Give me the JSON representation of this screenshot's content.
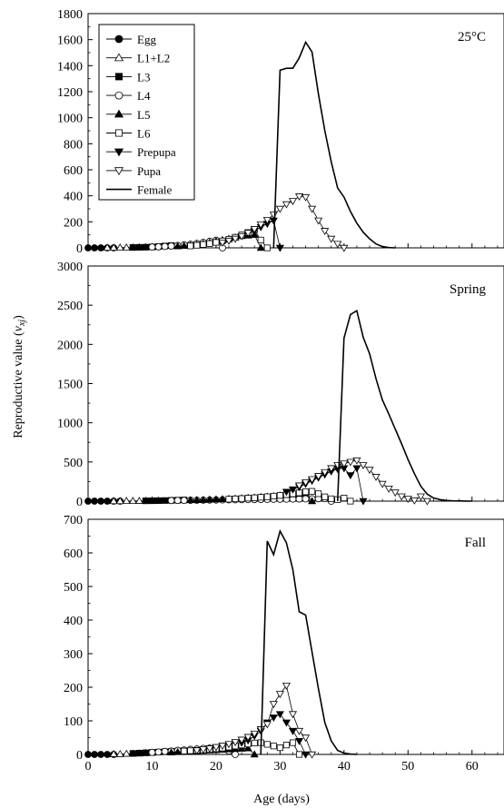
{
  "figure": {
    "ylabel_main": "Reproductive value (",
    "ylabel_var": "v",
    "ylabel_sub": "xj",
    "ylabel_close": ")",
    "xlabel": "Age (days)"
  },
  "legend": [
    {
      "name": "Egg",
      "marker": "circle-filled"
    },
    {
      "name": "L1+L2",
      "marker": "triangle-up-open"
    },
    {
      "name": "L3",
      "marker": "square-filled"
    },
    {
      "name": "L4",
      "marker": "circle-open"
    },
    {
      "name": "L5",
      "marker": "triangle-up-filled"
    },
    {
      "name": "L6",
      "marker": "square-open"
    },
    {
      "name": "Prepupa",
      "marker": "triangle-down-filled"
    },
    {
      "name": "Pupa",
      "marker": "triangle-down-open"
    },
    {
      "name": "Female",
      "marker": "line"
    }
  ],
  "chart_data": [
    {
      "type": "line",
      "panel_label": "25°C",
      "xlim": [
        0,
        65
      ],
      "ylim": [
        0,
        1800
      ],
      "xticks": [
        0,
        10,
        20,
        30,
        40,
        50,
        60
      ],
      "yticks": [
        0,
        200,
        400,
        600,
        800,
        1000,
        1200,
        1400,
        1600,
        1800
      ],
      "series": [
        {
          "name": "Egg",
          "marker": "circle-filled",
          "x": [
            0,
            1,
            2,
            3,
            4
          ],
          "y": [
            0,
            0,
            0,
            0,
            0
          ]
        },
        {
          "name": "L1+L2",
          "marker": "triangle-up-open",
          "x": [
            3,
            4,
            5,
            6,
            7,
            8,
            9,
            10
          ],
          "y": [
            1,
            1,
            2,
            2,
            3,
            4,
            5,
            7
          ]
        },
        {
          "name": "L3",
          "marker": "square-filled",
          "x": [
            7,
            8,
            9,
            10,
            11,
            12,
            13
          ],
          "y": [
            3,
            4,
            5,
            7,
            10,
            14,
            18
          ]
        },
        {
          "name": "L4",
          "marker": "circle-open",
          "x": [
            10,
            11,
            12,
            13,
            14,
            15,
            16,
            17,
            18,
            19,
            20,
            21
          ],
          "y": [
            6,
            8,
            11,
            14,
            18,
            23,
            28,
            34,
            42,
            50,
            58,
            0
          ]
        },
        {
          "name": "L5",
          "marker": "triangle-up-filled",
          "x": [
            14,
            15,
            16,
            17,
            18,
            19,
            20,
            21,
            22,
            23,
            24,
            25,
            26,
            27
          ],
          "y": [
            12,
            15,
            19,
            25,
            32,
            40,
            50,
            60,
            70,
            80,
            90,
            95,
            100,
            0
          ]
        },
        {
          "name": "L6",
          "marker": "square-open",
          "x": [
            16,
            17,
            18,
            19,
            20,
            21,
            22,
            23,
            24,
            25,
            26,
            27,
            28
          ],
          "y": [
            15,
            20,
            26,
            33,
            42,
            53,
            66,
            81,
            99,
            118,
            140,
            60,
            0
          ]
        },
        {
          "name": "Prepupa",
          "marker": "triangle-down-filled",
          "x": [
            26,
            27,
            28,
            29,
            30
          ],
          "y": [
            130,
            160,
            185,
            210,
            0
          ]
        },
        {
          "name": "Pupa",
          "marker": "triangle-down-open",
          "x": [
            21,
            22,
            23,
            24,
            25,
            26,
            27,
            28,
            29,
            30,
            31,
            32,
            33,
            34,
            35,
            36,
            37,
            38,
            39,
            40
          ],
          "y": [
            40,
            55,
            70,
            90,
            115,
            145,
            180,
            215,
            255,
            300,
            335,
            360,
            395,
            390,
            300,
            210,
            130,
            70,
            30,
            0
          ]
        },
        {
          "name": "Female",
          "marker": "line",
          "x": [
            29,
            30,
            31,
            32,
            33,
            34,
            35,
            36,
            37,
            38,
            39,
            40,
            41,
            42,
            43,
            44,
            45,
            46,
            47,
            48
          ],
          "y": [
            0,
            1365,
            1380,
            1380,
            1460,
            1580,
            1505,
            1180,
            900,
            660,
            460,
            390,
            280,
            190,
            120,
            70,
            30,
            10,
            2,
            0
          ]
        }
      ]
    },
    {
      "type": "line",
      "panel_label": "Spring",
      "xlim": [
        0,
        65
      ],
      "ylim": [
        0,
        3000
      ],
      "xticks": [
        0,
        10,
        20,
        30,
        40,
        50,
        60
      ],
      "yticks": [
        0,
        500,
        1000,
        1500,
        2000,
        2500,
        3000
      ],
      "series": [
        {
          "name": "Egg",
          "marker": "circle-filled",
          "x": [
            0,
            1,
            2,
            3,
            4,
            5
          ],
          "y": [
            0,
            0,
            0,
            0,
            0,
            0
          ]
        },
        {
          "name": "L1+L2",
          "marker": "triangle-up-open",
          "x": [
            4,
            5,
            6,
            7,
            8,
            9,
            10,
            11
          ],
          "y": [
            1,
            1,
            2,
            2,
            3,
            4,
            5,
            6
          ]
        },
        {
          "name": "L3",
          "marker": "square-filled",
          "x": [
            9,
            10,
            11,
            12,
            13,
            14,
            15
          ],
          "y": [
            4,
            5,
            6,
            8,
            10,
            12,
            15
          ]
        },
        {
          "name": "L4",
          "marker": "circle-open",
          "x": [
            13,
            14,
            15,
            16,
            17,
            18,
            19,
            20,
            21,
            22,
            23,
            24,
            25,
            26,
            27,
            28,
            29,
            30,
            31,
            32,
            33,
            34,
            35,
            36,
            37,
            38
          ],
          "y": [
            8,
            9,
            10,
            11,
            12,
            13,
            14,
            15,
            16,
            17,
            18,
            19,
            20,
            21,
            22,
            23,
            24,
            25,
            26,
            27,
            28,
            29,
            30,
            31,
            32,
            0
          ]
        },
        {
          "name": "L5",
          "marker": "triangle-up-filled",
          "x": [
            16,
            17,
            18,
            19,
            20,
            21,
            22,
            23,
            24,
            25,
            26,
            27,
            28,
            29,
            30,
            31,
            32,
            33,
            34,
            35
          ],
          "y": [
            12,
            14,
            16,
            19,
            22,
            25,
            28,
            32,
            36,
            41,
            46,
            52,
            58,
            64,
            70,
            78,
            86,
            94,
            102,
            0
          ]
        },
        {
          "name": "L6",
          "marker": "square-open",
          "x": [
            22,
            23,
            24,
            25,
            26,
            27,
            28,
            29,
            30,
            31,
            32,
            33,
            34,
            35,
            36,
            37,
            38,
            39,
            40,
            41
          ],
          "y": [
            25,
            29,
            33,
            38,
            43,
            49,
            56,
            64,
            73,
            83,
            94,
            106,
            119,
            125,
            95,
            55,
            30,
            20,
            40,
            0
          ]
        },
        {
          "name": "Prepupa",
          "marker": "triangle-down-filled",
          "x": [
            31,
            32,
            33,
            34,
            35,
            36,
            37,
            38,
            39,
            40,
            41,
            42,
            43
          ],
          "y": [
            120,
            150,
            180,
            220,
            260,
            300,
            340,
            380,
            410,
            420,
            330,
            420,
            0
          ]
        },
        {
          "name": "Pupa",
          "marker": "triangle-down-open",
          "x": [
            33,
            34,
            35,
            36,
            37,
            38,
            39,
            40,
            41,
            42,
            43,
            44,
            45,
            46,
            47,
            48,
            49,
            50,
            51,
            52,
            53
          ],
          "y": [
            200,
            240,
            280,
            320,
            370,
            420,
            460,
            480,
            500,
            520,
            460,
            400,
            310,
            220,
            160,
            110,
            60,
            30,
            10,
            60,
            0
          ]
        },
        {
          "name": "Female",
          "marker": "line",
          "x": [
            39,
            40,
            41,
            42,
            43,
            44,
            45,
            46,
            47,
            48,
            49,
            50,
            51,
            52,
            53,
            54,
            55,
            56,
            57,
            58,
            59,
            60
          ],
          "y": [
            0,
            2080,
            2380,
            2430,
            2090,
            1880,
            1560,
            1290,
            1110,
            920,
            730,
            530,
            350,
            190,
            90,
            40,
            20,
            8,
            4,
            2,
            1,
            0
          ]
        }
      ]
    },
    {
      "type": "line",
      "panel_label": "Fall",
      "xlim": [
        0,
        65
      ],
      "ylim": [
        0,
        700
      ],
      "xticks": [
        0,
        10,
        20,
        30,
        40,
        50,
        60
      ],
      "yticks": [
        0,
        100,
        200,
        300,
        400,
        500,
        600,
        700
      ],
      "series": [
        {
          "name": "Egg",
          "marker": "circle-filled",
          "x": [
            0,
            1,
            2,
            3,
            4
          ],
          "y": [
            0,
            0,
            0,
            0,
            0
          ]
        },
        {
          "name": "L1+L2",
          "marker": "triangle-up-open",
          "x": [
            4,
            5,
            6,
            7,
            8,
            9,
            10
          ],
          "y": [
            1,
            1,
            2,
            2,
            3,
            4,
            5
          ]
        },
        {
          "name": "L3",
          "marker": "square-filled",
          "x": [
            7,
            8,
            9,
            10,
            11,
            12,
            13,
            14,
            15
          ],
          "y": [
            3,
            4,
            5,
            6,
            7,
            8,
            9,
            10,
            11
          ]
        },
        {
          "name": "L4",
          "marker": "circle-open",
          "x": [
            10,
            11,
            12,
            13,
            14,
            15,
            16,
            17,
            18,
            19,
            20,
            21,
            22,
            23
          ],
          "y": [
            6,
            7,
            9,
            10,
            12,
            13,
            15,
            16,
            18,
            19,
            20,
            18,
            10,
            0
          ]
        },
        {
          "name": "L5",
          "marker": "triangle-up-filled",
          "x": [
            13,
            14,
            15,
            16,
            17,
            18,
            19,
            20,
            21,
            22,
            23,
            24,
            25,
            26
          ],
          "y": [
            6,
            7,
            8,
            9,
            10,
            11,
            12,
            13,
            14,
            15,
            16,
            17,
            18,
            0
          ]
        },
        {
          "name": "L6",
          "marker": "square-open",
          "x": [
            15,
            16,
            17,
            18,
            19,
            20,
            21,
            22,
            23,
            24,
            25,
            26,
            27,
            28,
            29,
            30,
            31,
            32,
            33
          ],
          "y": [
            10,
            11,
            12,
            13,
            15,
            17,
            19,
            22,
            25,
            28,
            31,
            34,
            35,
            30,
            25,
            20,
            28,
            35,
            0
          ]
        },
        {
          "name": "Prepupa",
          "marker": "triangle-down-filled",
          "x": [
            24,
            25,
            26,
            27,
            28,
            29,
            30,
            31,
            32,
            33,
            34
          ],
          "y": [
            35,
            42,
            55,
            70,
            95,
            110,
            120,
            95,
            70,
            40,
            0
          ]
        },
        {
          "name": "Pupa",
          "marker": "triangle-down-open",
          "x": [
            17,
            18,
            19,
            20,
            21,
            22,
            23,
            24,
            25,
            26,
            27,
            28,
            29,
            30,
            31,
            32,
            33,
            34,
            35
          ],
          "y": [
            12,
            15,
            18,
            22,
            26,
            31,
            37,
            44,
            52,
            62,
            75,
            90,
            150,
            180,
            205,
            120,
            70,
            50,
            0
          ]
        },
        {
          "name": "Female",
          "marker": "line",
          "x": [
            27,
            28,
            29,
            30,
            31,
            32,
            33,
            34,
            35,
            36,
            37,
            38,
            39,
            40,
            41,
            42
          ],
          "y": [
            0,
            635,
            595,
            665,
            630,
            550,
            425,
            415,
            305,
            195,
            95,
            40,
            12,
            4,
            1,
            0
          ]
        }
      ]
    }
  ]
}
